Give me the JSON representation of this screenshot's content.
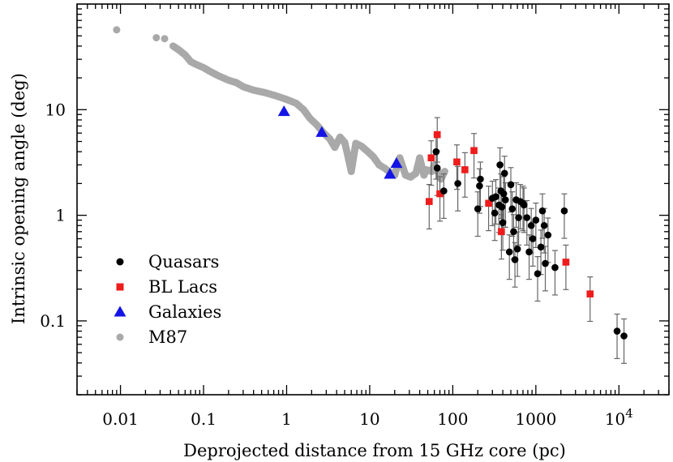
{
  "chart_data": {
    "type": "scatter",
    "xlabel": "Deprojected distance from 15 GHz core (pc)",
    "ylabel": "Intrinsic opening angle (deg)",
    "x_scale": "log",
    "y_scale": "log",
    "xlim": [
      0.003,
      40000
    ],
    "ylim": [
      0.02,
      100
    ],
    "x_ticks": [
      {
        "value": 0.01,
        "label": "0.01"
      },
      {
        "value": 0.1,
        "label": "0.1"
      },
      {
        "value": 1,
        "label": "1"
      },
      {
        "value": 10,
        "label": "10"
      },
      {
        "value": 100,
        "label": "100"
      },
      {
        "value": 1000,
        "label": "1000"
      },
      {
        "value": 10000,
        "label": "10",
        "exponent": "4"
      }
    ],
    "y_ticks": [
      {
        "value": 0.1,
        "label": "0.1"
      },
      {
        "value": 1,
        "label": "1"
      },
      {
        "value": 10,
        "label": "10"
      }
    ],
    "legend_position": "bottom-left",
    "series": [
      {
        "name": "Quasars",
        "marker": "circle",
        "color": "#000000",
        "points": [
          {
            "x": 63,
            "y": 4.0
          },
          {
            "x": 65,
            "y": 2.8
          },
          {
            "x": 78,
            "y": 1.7
          },
          {
            "x": 115,
            "y": 2.0
          },
          {
            "x": 200,
            "y": 1.15
          },
          {
            "x": 210,
            "y": 1.9
          },
          {
            "x": 215,
            "y": 2.2
          },
          {
            "x": 300,
            "y": 1.45
          },
          {
            "x": 320,
            "y": 1.05
          },
          {
            "x": 330,
            "y": 1.5
          },
          {
            "x": 360,
            "y": 1.25
          },
          {
            "x": 370,
            "y": 3.0
          },
          {
            "x": 380,
            "y": 1.7
          },
          {
            "x": 390,
            "y": 1.2
          },
          {
            "x": 400,
            "y": 0.85
          },
          {
            "x": 410,
            "y": 1.6
          },
          {
            "x": 420,
            "y": 2.5
          },
          {
            "x": 430,
            "y": 1.4
          },
          {
            "x": 480,
            "y": 0.45
          },
          {
            "x": 500,
            "y": 1.95
          },
          {
            "x": 520,
            "y": 1.15
          },
          {
            "x": 540,
            "y": 0.7
          },
          {
            "x": 560,
            "y": 0.38
          },
          {
            "x": 580,
            "y": 1.4
          },
          {
            "x": 600,
            "y": 0.48
          },
          {
            "x": 620,
            "y": 0.95
          },
          {
            "x": 650,
            "y": 1.35
          },
          {
            "x": 700,
            "y": 1.3
          },
          {
            "x": 720,
            "y": 1.25
          },
          {
            "x": 780,
            "y": 0.95
          },
          {
            "x": 830,
            "y": 0.45
          },
          {
            "x": 880,
            "y": 0.8
          },
          {
            "x": 920,
            "y": 0.6
          },
          {
            "x": 1000,
            "y": 0.9
          },
          {
            "x": 1050,
            "y": 0.28
          },
          {
            "x": 1150,
            "y": 0.5
          },
          {
            "x": 1200,
            "y": 1.1
          },
          {
            "x": 1260,
            "y": 0.8
          },
          {
            "x": 1300,
            "y": 0.35
          },
          {
            "x": 1400,
            "y": 0.65
          },
          {
            "x": 1700,
            "y": 0.32
          },
          {
            "x": 2200,
            "y": 1.1
          },
          {
            "x": 9500,
            "y": 0.08
          },
          {
            "x": 11500,
            "y": 0.072
          }
        ]
      },
      {
        "name": "BL Lacs",
        "marker": "square",
        "color": "#ee1c1c",
        "points": [
          {
            "x": 52,
            "y": 1.35
          },
          {
            "x": 55,
            "y": 3.5
          },
          {
            "x": 65,
            "y": 5.8
          },
          {
            "x": 70,
            "y": 1.6
          },
          {
            "x": 112,
            "y": 3.2
          },
          {
            "x": 140,
            "y": 2.7
          },
          {
            "x": 180,
            "y": 4.1
          },
          {
            "x": 270,
            "y": 1.3
          },
          {
            "x": 385,
            "y": 0.7
          },
          {
            "x": 2300,
            "y": 0.36
          },
          {
            "x": 4500,
            "y": 0.18
          }
        ]
      },
      {
        "name": "Galaxies",
        "marker": "triangle",
        "color": "#1414e6",
        "points": [
          {
            "x": 0.93,
            "y": 9.6
          },
          {
            "x": 2.65,
            "y": 6.1
          },
          {
            "x": 17.5,
            "y": 2.45
          },
          {
            "x": 21,
            "y": 3.1
          }
        ]
      },
      {
        "name": "M87",
        "marker": "circle",
        "color": "#a9a9a9",
        "points": [
          {
            "x": 0.009,
            "y": 57
          },
          {
            "x": 0.027,
            "y": 48
          },
          {
            "x": 0.034,
            "y": 47
          },
          {
            "x": 0.043,
            "y": 40
          },
          {
            "x": 0.05,
            "y": 37
          },
          {
            "x": 0.06,
            "y": 33
          },
          {
            "x": 0.07,
            "y": 28.5
          },
          {
            "x": 0.08,
            "y": 27
          },
          {
            "x": 0.1,
            "y": 25
          },
          {
            "x": 0.12,
            "y": 23
          },
          {
            "x": 0.15,
            "y": 21
          },
          {
            "x": 0.2,
            "y": 19
          },
          {
            "x": 0.25,
            "y": 18
          },
          {
            "x": 0.3,
            "y": 16.5
          },
          {
            "x": 0.4,
            "y": 15.3
          },
          {
            "x": 0.55,
            "y": 14.5
          },
          {
            "x": 0.75,
            "y": 13.5
          },
          {
            "x": 1.0,
            "y": 12.5
          },
          {
            "x": 1.3,
            "y": 11.5
          },
          {
            "x": 1.6,
            "y": 10
          },
          {
            "x": 1.9,
            "y": 8.3
          },
          {
            "x": 2.3,
            "y": 7.2
          },
          {
            "x": 2.8,
            "y": 6.0
          },
          {
            "x": 3.3,
            "y": 5.3
          },
          {
            "x": 3.8,
            "y": 4.4
          },
          {
            "x": 4.4,
            "y": 5.5
          },
          {
            "x": 5.0,
            "y": 4.9
          },
          {
            "x": 5.4,
            "y": 3.8
          },
          {
            "x": 6.0,
            "y": 2.6
          },
          {
            "x": 6.8,
            "y": 4.8
          },
          {
            "x": 8.0,
            "y": 4.5
          },
          {
            "x": 9.5,
            "y": 4.0
          },
          {
            "x": 11,
            "y": 3.6
          },
          {
            "x": 13,
            "y": 3.0
          },
          {
            "x": 15,
            "y": 2.8
          },
          {
            "x": 17,
            "y": 2.6
          },
          {
            "x": 20,
            "y": 2.4
          },
          {
            "x": 23,
            "y": 3.5
          },
          {
            "x": 27,
            "y": 2.4
          },
          {
            "x": 31,
            "y": 2.3
          },
          {
            "x": 36,
            "y": 2.5
          },
          {
            "x": 40,
            "y": 3.5
          },
          {
            "x": 45,
            "y": 2.4
          },
          {
            "x": 48,
            "y": 2.7
          },
          {
            "x": 56,
            "y": 2.6
          },
          {
            "x": 60,
            "y": 3.0
          },
          {
            "x": 68,
            "y": 2.5
          },
          {
            "x": 72,
            "y": 2.2
          },
          {
            "x": 80,
            "y": 2.6
          }
        ]
      }
    ]
  }
}
